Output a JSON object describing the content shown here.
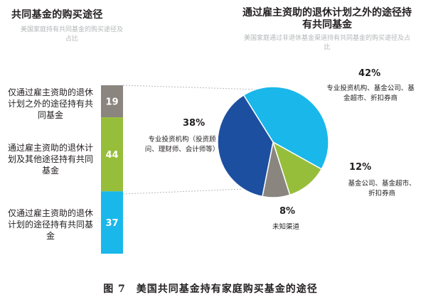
{
  "left_panel": {
    "title": "共同基金的购买途径",
    "subtitle": "美国家庭持有共同基金的购买途径及占比"
  },
  "right_panel": {
    "title": "通过雇主资助的退休计划之外的途径持有共同基金",
    "subtitle": "美国家庭通过非退休基金渠道持有共同基金的购买途径及占比"
  },
  "caption": "图 7　美国共同基金持有家庭购买基金的途径",
  "chart_data": [
    {
      "type": "bar",
      "stacked": true,
      "unit": "%",
      "categories": [
        "仅通过雇主资助的退休计划之外的途径持有共同基金",
        "通过雇主资助的退休计划及其他途径持有共同基金",
        "仅通过雇主资助的退休计划的途径持有共同基金"
      ],
      "values": [
        19,
        44,
        37
      ],
      "colors": [
        "#8b8580",
        "#97be3b",
        "#1ab7ea"
      ],
      "value_labels": [
        "19",
        "44",
        "37"
      ]
    },
    {
      "type": "pie",
      "unit": "%",
      "slices": [
        {
          "label": "专业投资机构（投资顾问、理财师、会计师等）",
          "value": 38,
          "pct_label": "38%",
          "color": "#1d4fa0"
        },
        {
          "label": "专业投资机构、基金公司、基金超市、折扣券商",
          "value": 42,
          "pct_label": "42%",
          "color": "#1ab7ea"
        },
        {
          "label": "基金公司、基金超市、折扣券商",
          "value": 12,
          "pct_label": "12%",
          "color": "#97be3b"
        },
        {
          "label": "未知渠道",
          "value": 8,
          "pct_label": "8%",
          "color": "#8b8580"
        }
      ]
    }
  ]
}
